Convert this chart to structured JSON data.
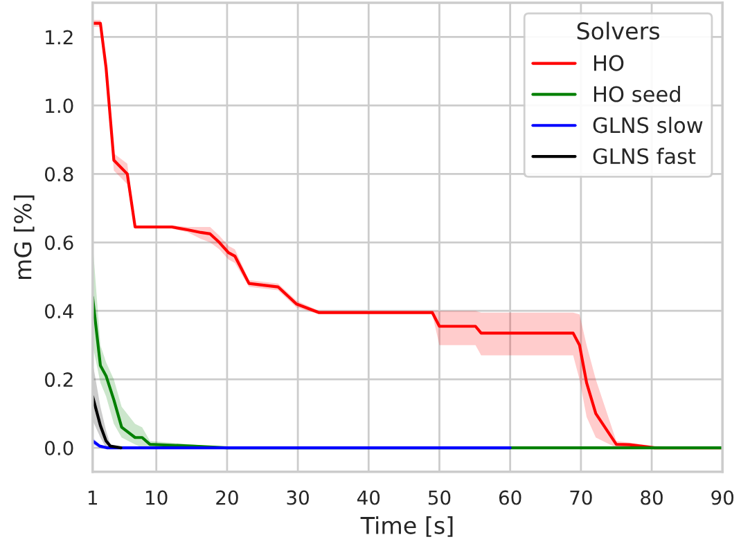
{
  "chart_data": {
    "type": "line",
    "xlabel": "Time [s]",
    "ylabel": "mG [%]",
    "legend_title": "Solvers",
    "legend": "top right",
    "grid": true,
    "line_style": "solid",
    "marker": "none",
    "xlim": [
      1,
      90
    ],
    "xticks": [
      1,
      10,
      20,
      30,
      40,
      50,
      60,
      70,
      80,
      90
    ],
    "ylim": [
      -0.07,
      1.3
    ],
    "yticks": [
      {
        "value": 0,
        "label": "0.0"
      },
      0.2,
      0.4,
      0.6,
      0.8,
      {
        "value": 1,
        "label": "1.0"
      },
      1.2
    ],
    "series": [
      {
        "name": "HO",
        "color": "#ff0000",
        "x": [
          1,
          2.1,
          2.9,
          4.0,
          5.9,
          7.0,
          12.2,
          14.4,
          16.3,
          17.6,
          18.9,
          20.2,
          21.1,
          23.1,
          27.2,
          29.8,
          33.0,
          49.0,
          50.0,
          55.1,
          55.9,
          68.9,
          69.8,
          70.8,
          72.1,
          75.0,
          76.9,
          80.4,
          90
        ],
        "values": [
          1.24,
          1.24,
          1.11,
          0.84,
          0.8,
          0.645,
          0.645,
          0.637,
          0.629,
          0.625,
          0.6,
          0.57,
          0.56,
          0.48,
          0.47,
          0.42,
          0.395,
          0.395,
          0.355,
          0.355,
          0.335,
          0.335,
          0.3,
          0.19,
          0.1,
          0.01,
          0.009,
          0.0,
          0.0
        ],
        "lower": [
          1.23,
          1.23,
          1.09,
          0.81,
          0.77,
          0.64,
          0.64,
          0.63,
          0.61,
          0.6,
          0.58,
          0.55,
          0.54,
          0.47,
          0.46,
          0.41,
          0.39,
          0.39,
          0.3,
          0.3,
          0.27,
          0.27,
          0.2,
          0.09,
          0.03,
          0.0,
          0.0,
          0.0,
          0.0
        ],
        "upper": [
          1.25,
          1.25,
          1.13,
          0.86,
          0.83,
          0.65,
          0.65,
          0.645,
          0.645,
          0.645,
          0.62,
          0.59,
          0.58,
          0.49,
          0.48,
          0.43,
          0.4,
          0.4,
          0.4,
          0.4,
          0.395,
          0.395,
          0.39,
          0.3,
          0.2,
          0.02,
          0.015,
          0.005,
          0.0
        ]
      },
      {
        "name": "HO seed",
        "color": "#008000",
        "x": [
          1,
          2.1,
          2.9,
          4.0,
          5.1,
          7.0,
          8.0,
          9.1,
          15,
          20,
          90
        ],
        "values": [
          0.44,
          0.24,
          0.21,
          0.14,
          0.06,
          0.03,
          0.03,
          0.01,
          0.005,
          0.0,
          0.0
        ],
        "lower": [
          0.3,
          0.19,
          0.15,
          0.07,
          0.03,
          0.01,
          0.0,
          0.0,
          0.0,
          0.0,
          0.0
        ],
        "upper": [
          0.6,
          0.3,
          0.25,
          0.2,
          0.12,
          0.07,
          0.06,
          0.02,
          0.01,
          0.0,
          0.0
        ]
      },
      {
        "name": "GLNS slow",
        "color": "#0000ff",
        "x": [
          1,
          2,
          3,
          60
        ],
        "values": [
          0.02,
          0.005,
          0.0,
          0.0
        ],
        "lower": [
          0.01,
          0.0,
          0.0,
          0.0
        ],
        "upper": [
          0.03,
          0.01,
          0.0,
          0.0
        ]
      },
      {
        "name": "GLNS fast",
        "color": "#000000",
        "x": [
          1,
          2.1,
          2.9,
          3.5,
          5.0
        ],
        "values": [
          0.15,
          0.065,
          0.02,
          0.005,
          0.0
        ],
        "lower": [
          0.08,
          0.03,
          0.0,
          0.0,
          0.0
        ],
        "upper": [
          0.25,
          0.12,
          0.05,
          0.01,
          0.0
        ]
      }
    ]
  }
}
